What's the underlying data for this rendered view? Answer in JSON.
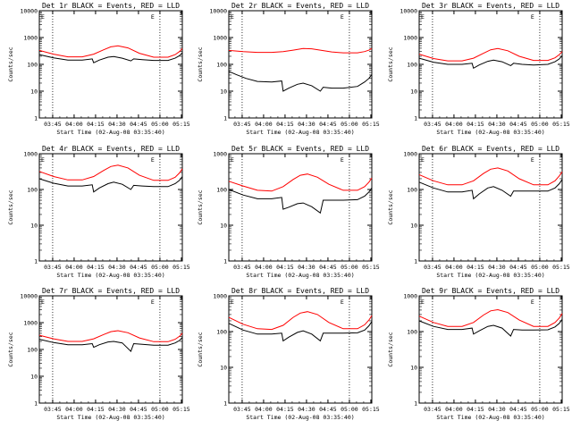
{
  "colors": {
    "events": "#000000",
    "lld": "#ff0000",
    "background": "#ffffff",
    "axis": "#000000"
  },
  "time_ticks": [
    "03:45",
    "04:00",
    "04:15",
    "04:30",
    "04:45",
    "05:00",
    "05:15"
  ],
  "chart_data": [
    {
      "type": "line",
      "title": "Det 1r BLACK = Events, RED = LLD",
      "xlabel": "Start Time (02-Aug-08 03:35:40)",
      "ylabel": "Counts/sec",
      "yscale": "log",
      "ylim": [
        1,
        10000
      ],
      "yticks": [
        "1",
        "10",
        "100",
        "1000",
        "10000"
      ],
      "xlim_minutes": [
        0,
        100
      ],
      "marker_labels": [
        "E",
        "E"
      ],
      "series": [
        {
          "color": "red",
          "x_minutes": [
            0,
            10,
            20,
            30,
            38,
            45,
            50,
            55,
            62,
            70,
            80,
            90,
            95,
            98,
            100
          ],
          "values": [
            330,
            240,
            190,
            190,
            240,
            350,
            450,
            490,
            410,
            260,
            185,
            185,
            230,
            300,
            390
          ]
        },
        {
          "color": "black",
          "x_minutes": [
            0,
            10,
            20,
            30,
            37,
            38,
            42,
            48,
            52,
            58,
            64,
            66,
            72,
            80,
            90,
            95,
            98,
            100
          ],
          "values": [
            230,
            175,
            145,
            145,
            160,
            115,
            145,
            185,
            195,
            170,
            135,
            160,
            150,
            140,
            140,
            170,
            210,
            270
          ]
        }
      ]
    },
    {
      "type": "line",
      "title": "Det 2r BLACK = Events, RED = LLD",
      "xlabel": "Start Time (02-Aug-08 03:35:40)",
      "ylabel": "Counts/sec",
      "yscale": "log",
      "ylim": [
        1,
        10000
      ],
      "yticks": [
        "1",
        "10",
        "100",
        "1000",
        "10000"
      ],
      "xlim_minutes": [
        0,
        100
      ],
      "marker_labels": [
        "E",
        "E"
      ],
      "series": [
        {
          "color": "red",
          "x_minutes": [
            0,
            10,
            20,
            30,
            38,
            45,
            52,
            58,
            65,
            72,
            80,
            90,
            95,
            98,
            100
          ],
          "values": [
            330,
            300,
            280,
            280,
            300,
            340,
            390,
            380,
            330,
            290,
            270,
            270,
            300,
            340,
            390
          ]
        },
        {
          "color": "black",
          "x_minutes": [
            0,
            5,
            12,
            20,
            30,
            37,
            38,
            42,
            48,
            52,
            58,
            64,
            66,
            72,
            80,
            90,
            95,
            98,
            100
          ],
          "values": [
            55,
            42,
            30,
            23,
            22,
            24,
            10,
            13,
            18,
            20,
            16,
            10,
            14,
            13,
            13,
            15,
            22,
            30,
            42
          ]
        }
      ]
    },
    {
      "type": "line",
      "title": "Det 3r BLACK = Events, RED = LLD",
      "xlabel": "Start Time (02-Aug-08 03:35:40)",
      "ylabel": "Counts/sec",
      "yscale": "log",
      "ylim": [
        1,
        10000
      ],
      "yticks": [
        "1",
        "10",
        "100",
        "1000",
        "10000"
      ],
      "xlim_minutes": [
        0,
        100
      ],
      "marker_labels": [
        "E",
        "E"
      ],
      "series": [
        {
          "color": "red",
          "x_minutes": [
            0,
            10,
            20,
            30,
            38,
            45,
            50,
            55,
            62,
            70,
            80,
            90,
            95,
            98,
            100
          ],
          "values": [
            240,
            165,
            135,
            135,
            170,
            260,
            350,
            390,
            320,
            200,
            140,
            140,
            175,
            230,
            300
          ]
        },
        {
          "color": "black",
          "x_minutes": [
            0,
            10,
            20,
            30,
            37,
            38,
            42,
            48,
            52,
            58,
            64,
            66,
            72,
            80,
            90,
            95,
            98,
            100
          ],
          "values": [
            170,
            120,
            100,
            100,
            110,
            72,
            95,
            130,
            145,
            125,
            90,
            110,
            100,
            95,
            100,
            125,
            160,
            210
          ]
        }
      ]
    },
    {
      "type": "line",
      "title": "Det 4r BLACK = Events, RED = LLD",
      "xlabel": "Start Time (02-Aug-08 03:35:40)",
      "ylabel": "Counts/sec",
      "yscale": "log",
      "ylim": [
        1,
        1000
      ],
      "yticks": [
        "1",
        "10",
        "100",
        "1000"
      ],
      "xlim_minutes": [
        0,
        100
      ],
      "marker_labels": [
        "E",
        "E"
      ],
      "series": [
        {
          "color": "red",
          "x_minutes": [
            0,
            10,
            20,
            30,
            38,
            45,
            50,
            55,
            62,
            70,
            80,
            90,
            95,
            98,
            100
          ],
          "values": [
            320,
            230,
            185,
            185,
            230,
            340,
            440,
            480,
            400,
            250,
            180,
            180,
            220,
            290,
            380
          ]
        },
        {
          "color": "black",
          "x_minutes": [
            0,
            10,
            20,
            30,
            37,
            38,
            42,
            48,
            52,
            58,
            64,
            66,
            72,
            80,
            90,
            95,
            98,
            100
          ],
          "values": [
            200,
            150,
            125,
            125,
            135,
            85,
            110,
            145,
            160,
            140,
            100,
            130,
            125,
            120,
            120,
            145,
            180,
            230
          ]
        }
      ]
    },
    {
      "type": "line",
      "title": "Det 5r BLACK = Events, RED = LLD",
      "xlabel": "Start Time (02-Aug-08 03:35:40)",
      "ylabel": "Counts/sec",
      "yscale": "log",
      "ylim": [
        1,
        1000
      ],
      "yticks": [
        "1",
        "10",
        "100",
        "1000"
      ],
      "xlim_minutes": [
        0,
        100
      ],
      "marker_labels": [
        "E",
        "E"
      ],
      "series": [
        {
          "color": "red",
          "x_minutes": [
            0,
            10,
            20,
            30,
            38,
            45,
            50,
            55,
            62,
            70,
            80,
            90,
            95,
            98,
            100
          ],
          "values": [
            170,
            125,
            95,
            90,
            120,
            190,
            250,
            270,
            220,
            140,
            95,
            95,
            120,
            160,
            210
          ]
        },
        {
          "color": "black",
          "x_minutes": [
            0,
            10,
            20,
            30,
            37,
            38,
            42,
            48,
            52,
            58,
            64,
            66,
            72,
            80,
            90,
            95,
            98,
            100
          ],
          "values": [
            100,
            70,
            55,
            55,
            60,
            28,
            32,
            40,
            42,
            33,
            22,
            50,
            50,
            50,
            52,
            65,
            85,
            110
          ]
        }
      ]
    },
    {
      "type": "line",
      "title": "Det 6r BLACK = Events, RED = LLD",
      "xlabel": "Start Time (02-Aug-08 03:35:40)",
      "ylabel": "Counts/sec",
      "yscale": "log",
      "ylim": [
        1,
        1000
      ],
      "yticks": [
        "1",
        "10",
        "100",
        "1000"
      ],
      "xlim_minutes": [
        0,
        100
      ],
      "marker_labels": [
        "E",
        "E"
      ],
      "series": [
        {
          "color": "red",
          "x_minutes": [
            0,
            10,
            20,
            30,
            38,
            45,
            50,
            55,
            62,
            70,
            80,
            90,
            95,
            98,
            100
          ],
          "values": [
            260,
            175,
            135,
            135,
            175,
            280,
            370,
            400,
            330,
            200,
            135,
            135,
            175,
            240,
            310
          ]
        },
        {
          "color": "black",
          "x_minutes": [
            0,
            10,
            20,
            30,
            37,
            38,
            42,
            48,
            52,
            58,
            64,
            66,
            72,
            80,
            90,
            95,
            98,
            100
          ],
          "values": [
            160,
            110,
            85,
            85,
            95,
            55,
            75,
            110,
            120,
            95,
            65,
            90,
            90,
            90,
            90,
            110,
            145,
            190
          ]
        }
      ]
    },
    {
      "type": "line",
      "title": "Det 7r BLACK = Events, RED = LLD",
      "xlabel": "Start Time (02-Aug-08 03:35:40)",
      "ylabel": "Counts/sec",
      "yscale": "log",
      "ylim": [
        1,
        10000
      ],
      "yticks": [
        "1",
        "10",
        "100",
        "1000",
        "10000"
      ],
      "xlim_minutes": [
        0,
        100
      ],
      "marker_labels": [
        "E",
        "E"
      ],
      "series": [
        {
          "color": "red",
          "x_minutes": [
            0,
            10,
            20,
            30,
            38,
            45,
            50,
            55,
            62,
            70,
            80,
            90,
            95,
            98,
            100
          ],
          "values": [
            340,
            250,
            200,
            200,
            250,
            360,
            460,
            500,
            420,
            270,
            195,
            195,
            240,
            310,
            400
          ]
        },
        {
          "color": "black",
          "x_minutes": [
            0,
            10,
            20,
            30,
            37,
            38,
            42,
            48,
            52,
            58,
            64,
            66,
            72,
            80,
            90,
            95,
            98,
            100
          ],
          "values": [
            240,
            180,
            150,
            150,
            165,
            120,
            150,
            190,
            200,
            175,
            85,
            165,
            155,
            145,
            145,
            175,
            215,
            280
          ]
        }
      ]
    },
    {
      "type": "line",
      "title": "Det 8r BLACK = Events, RED = LLD",
      "xlabel": "Start Time (02-Aug-08 03:35:40)",
      "ylabel": "Counts/sec",
      "yscale": "log",
      "ylim": [
        1,
        1000
      ],
      "yticks": [
        "1",
        "10",
        "100",
        "1000"
      ],
      "xlim_minutes": [
        0,
        100
      ],
      "marker_labels": [
        "E",
        "E"
      ],
      "series": [
        {
          "color": "red",
          "x_minutes": [
            0,
            10,
            20,
            30,
            38,
            45,
            50,
            55,
            62,
            70,
            80,
            90,
            95,
            98,
            100
          ],
          "values": [
            250,
            160,
            120,
            115,
            150,
            250,
            330,
            360,
            300,
            180,
            120,
            120,
            155,
            210,
            280
          ]
        },
        {
          "color": "black",
          "x_minutes": [
            0,
            10,
            20,
            30,
            37,
            38,
            42,
            48,
            52,
            58,
            64,
            66,
            72,
            80,
            90,
            95,
            98,
            100
          ],
          "values": [
            170,
            110,
            85,
            85,
            90,
            55,
            70,
            95,
            105,
            85,
            55,
            90,
            90,
            90,
            92,
            110,
            145,
            190
          ]
        }
      ]
    },
    {
      "type": "line",
      "title": "Det 9r BLACK = Events, RED = LLD",
      "xlabel": "Start Time (02-Aug-08 03:35:40)",
      "ylabel": "Counts/sec",
      "yscale": "log",
      "ylim": [
        1,
        1000
      ],
      "yticks": [
        "1",
        "10",
        "100",
        "1000"
      ],
      "xlim_minutes": [
        0,
        100
      ],
      "marker_labels": [
        "E",
        "E"
      ],
      "series": [
        {
          "color": "red",
          "x_minutes": [
            0,
            10,
            20,
            30,
            38,
            45,
            50,
            55,
            62,
            70,
            80,
            90,
            95,
            98,
            100
          ],
          "values": [
            270,
            180,
            140,
            140,
            180,
            290,
            380,
            410,
            340,
            210,
            140,
            140,
            180,
            240,
            320
          ]
        },
        {
          "color": "black",
          "x_minutes": [
            0,
            10,
            20,
            30,
            37,
            38,
            42,
            48,
            52,
            58,
            64,
            66,
            72,
            80,
            90,
            95,
            98,
            100
          ],
          "values": [
            200,
            140,
            115,
            115,
            125,
            85,
            105,
            140,
            150,
            125,
            75,
            115,
            110,
            110,
            112,
            135,
            170,
            220
          ]
        }
      ]
    }
  ]
}
